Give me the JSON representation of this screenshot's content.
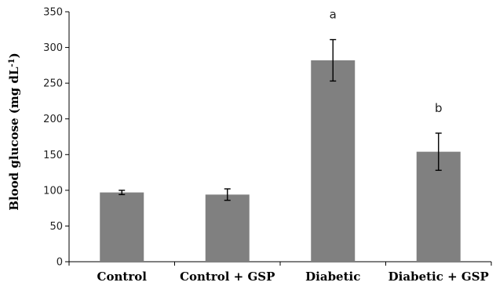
{
  "chart_data": {
    "type": "bar",
    "categories": [
      "Control",
      "Control + GSP",
      "Diabetic",
      "Diabetic + GSP"
    ],
    "values": [
      97,
      94,
      282,
      154
    ],
    "error": [
      3,
      8,
      29,
      26
    ],
    "annotations": [
      "",
      "",
      "a",
      "b"
    ],
    "ylabel_main": "Blood glucose (mg dL",
    "ylabel_sup": "-1",
    "ylabel_end": ")",
    "xlabel": "",
    "title": "",
    "ylim": [
      0,
      350
    ],
    "yticks": [
      0,
      50,
      100,
      150,
      200,
      250,
      300,
      350
    ],
    "grid": false,
    "legend": "none",
    "bar_color": "#808080",
    "error_color": "#000000"
  }
}
